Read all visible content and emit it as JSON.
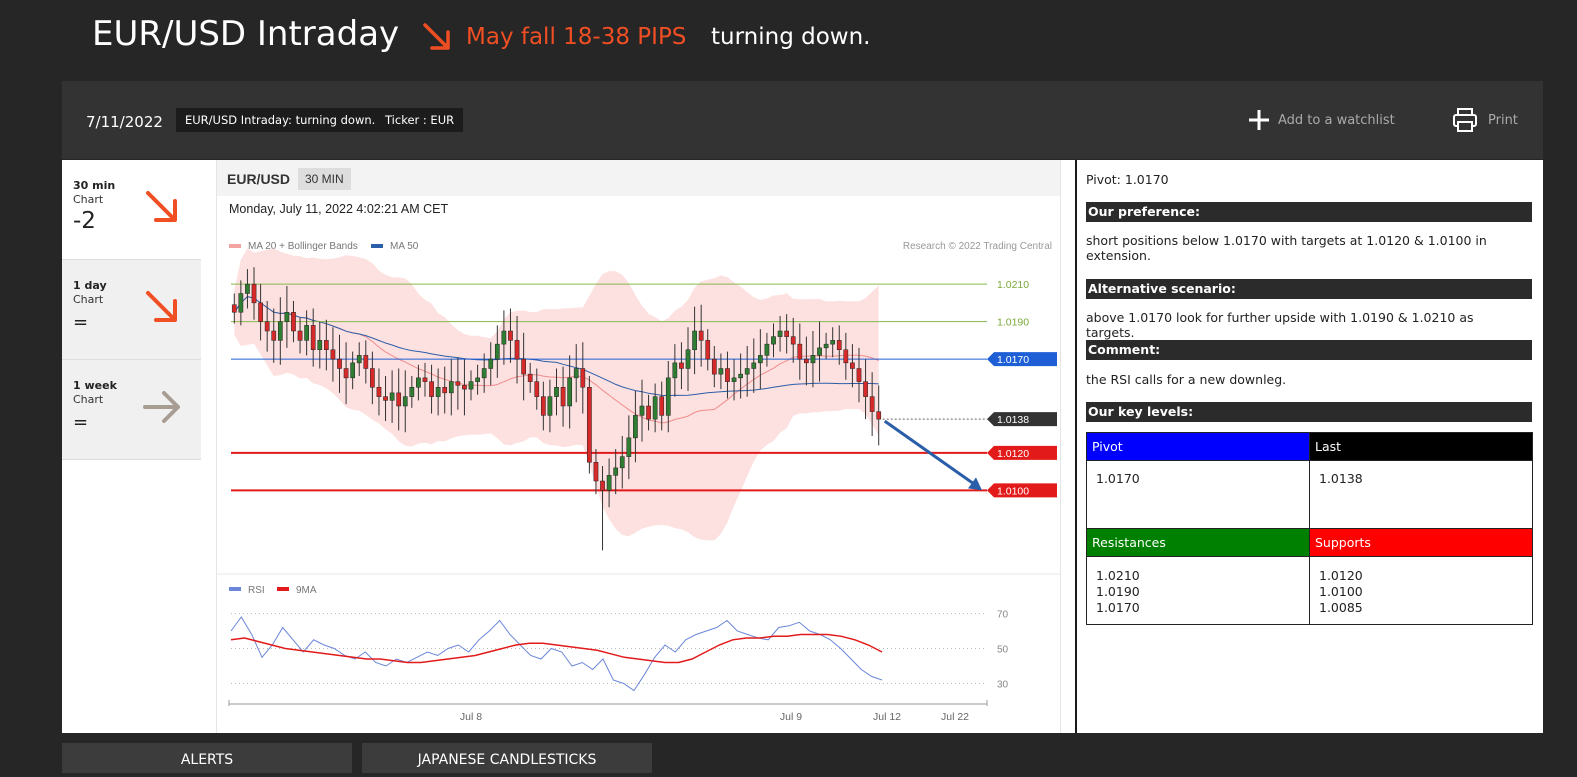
{
  "header": {
    "title": "EUR/USD Intraday",
    "forecast": "May fall 18-38 PIPS",
    "headline": "turning down.",
    "accent": "#f04e23"
  },
  "toolbar": {
    "date": "7/11/2022",
    "tags": [
      "EUR/USD Intraday: turning down.",
      "Ticker : EUR"
    ],
    "watchlist": "Add to a watchlist",
    "print": "Print"
  },
  "timeframes": [
    {
      "name": "30 min",
      "sub": "Chart",
      "value": "-2",
      "icon": "arrow-down-right-icon"
    },
    {
      "name": "1 day",
      "sub": "Chart",
      "value": "=",
      "icon": "arrow-down-right-icon"
    },
    {
      "name": "1 week",
      "sub": "Chart",
      "value": "=",
      "icon": "arrow-right-icon"
    }
  ],
  "chart_header": {
    "symbol": "EUR/USD",
    "timeframe": "30 MIN",
    "datetime": "Monday, July 11, 2022 4:02:21 AM CET",
    "legend": [
      "MA 20 + Bollinger Bands",
      "MA 50"
    ],
    "credit": "Research © 2022 Trading Central",
    "rsi_legend": [
      "RSI",
      "9MA"
    ]
  },
  "chart_data": {
    "type": "candlestick",
    "levels": [
      {
        "label": "1.0210",
        "value": 1.021,
        "kind": "resistance"
      },
      {
        "label": "1.0190",
        "value": 1.019,
        "kind": "resistance"
      },
      {
        "label": "1.0170",
        "value": 1.017,
        "kind": "pivot"
      },
      {
        "label": "1.0138",
        "value": 1.0138,
        "kind": "last"
      },
      {
        "label": "1.0120",
        "value": 1.012,
        "kind": "support"
      },
      {
        "label": "1.0100",
        "value": 1.01,
        "kind": "support"
      }
    ],
    "ylim": [
      1.0065,
      1.0225
    ],
    "closes": [
      1.0195,
      1.0205,
      1.021,
      1.02,
      1.019,
      1.0185,
      1.018,
      1.019,
      1.0195,
      1.0185,
      1.018,
      1.0188,
      1.0175,
      1.018,
      1.0175,
      1.017,
      1.0165,
      1.016,
      1.0168,
      1.0172,
      1.0165,
      1.0155,
      1.015,
      1.0148,
      1.0152,
      1.0145,
      1.015,
      1.0155,
      1.016,
      1.0158,
      1.015,
      1.0155,
      1.0152,
      1.0158,
      1.0156,
      1.0154,
      1.0158,
      1.016,
      1.0165,
      1.017,
      1.0178,
      1.0185,
      1.018,
      1.017,
      1.0162,
      1.0158,
      1.015,
      1.014,
      1.015,
      1.0155,
      1.0145,
      1.016,
      1.0165,
      1.0155,
      1.0115,
      1.0105,
      1.01,
      1.0108,
      1.0112,
      1.0118,
      1.0128,
      1.014,
      1.0145,
      1.0138,
      1.015,
      1.014,
      1.016,
      1.0168,
      1.0165,
      1.0175,
      1.0185,
      1.018,
      1.017,
      1.0162,
      1.0165,
      1.0158,
      1.016,
      1.0162,
      1.0165,
      1.0168,
      1.0172,
      1.0178,
      1.0182,
      1.0185,
      1.0182,
      1.0178,
      1.017,
      1.0168,
      1.0172,
      1.0176,
      1.0178,
      1.018,
      1.0175,
      1.0168,
      1.0165,
      1.0158,
      1.015,
      1.0142,
      1.0138
    ],
    "x_ticks": [
      "Jul 8",
      "Jul 9",
      "Jul 12",
      "Jul 22"
    ],
    "rsi_ticks": [
      "70",
      "50",
      "30"
    ],
    "rsi_ylim": [
      20,
      80
    ],
    "rsi": [
      60,
      68,
      58,
      45,
      52,
      62,
      55,
      48,
      55,
      52,
      50,
      46,
      44,
      48,
      42,
      40,
      44,
      42,
      45,
      48,
      46,
      50,
      52,
      48,
      55,
      60,
      66,
      58,
      52,
      46,
      44,
      50,
      48,
      40,
      42,
      38,
      44,
      32,
      30,
      26,
      35,
      45,
      52,
      48,
      55,
      58,
      60,
      62,
      66,
      60,
      58,
      56,
      55,
      62,
      63,
      65,
      60,
      58,
      55,
      50,
      44,
      38,
      34,
      32
    ],
    "rsi_ma": [
      55,
      56,
      54,
      52,
      50,
      49,
      48,
      47,
      46,
      45,
      44,
      44,
      43,
      42,
      42,
      43,
      44,
      45,
      46,
      48,
      50,
      52,
      53,
      53,
      52,
      51,
      50,
      49,
      47,
      45,
      44,
      43,
      42,
      42,
      44,
      48,
      52,
      55,
      56,
      56,
      57,
      57,
      58,
      58,
      58,
      57,
      55,
      52,
      48
    ]
  },
  "analysis": {
    "pivot_text": "Pivot: 1.0170",
    "pref_title": "Our preference:",
    "pref": "short positions below 1.0170 with targets at 1.0120 & 1.0100 in extension.",
    "alt_title": "Alternative scenario:",
    "alt": "above 1.0170 look for further upside with 1.0190 & 1.0210 as targets.",
    "comment_title": "Comment:",
    "comment": "the RSI calls for a new downleg.",
    "levels_title": "Our key levels:",
    "pivot_label": "Pivot",
    "pivot_value": "1.0170",
    "last_label": "Last",
    "last_value": "1.0138",
    "res_label": "Resistances",
    "res_values": [
      "1.0210",
      "1.0190",
      "1.0170"
    ],
    "sup_label": "Supports",
    "sup_values": [
      "1.0120",
      "1.0100",
      "1.0085"
    ]
  },
  "bottom_tabs": [
    "ALERTS",
    "JAPANESE CANDLESTICKS"
  ]
}
